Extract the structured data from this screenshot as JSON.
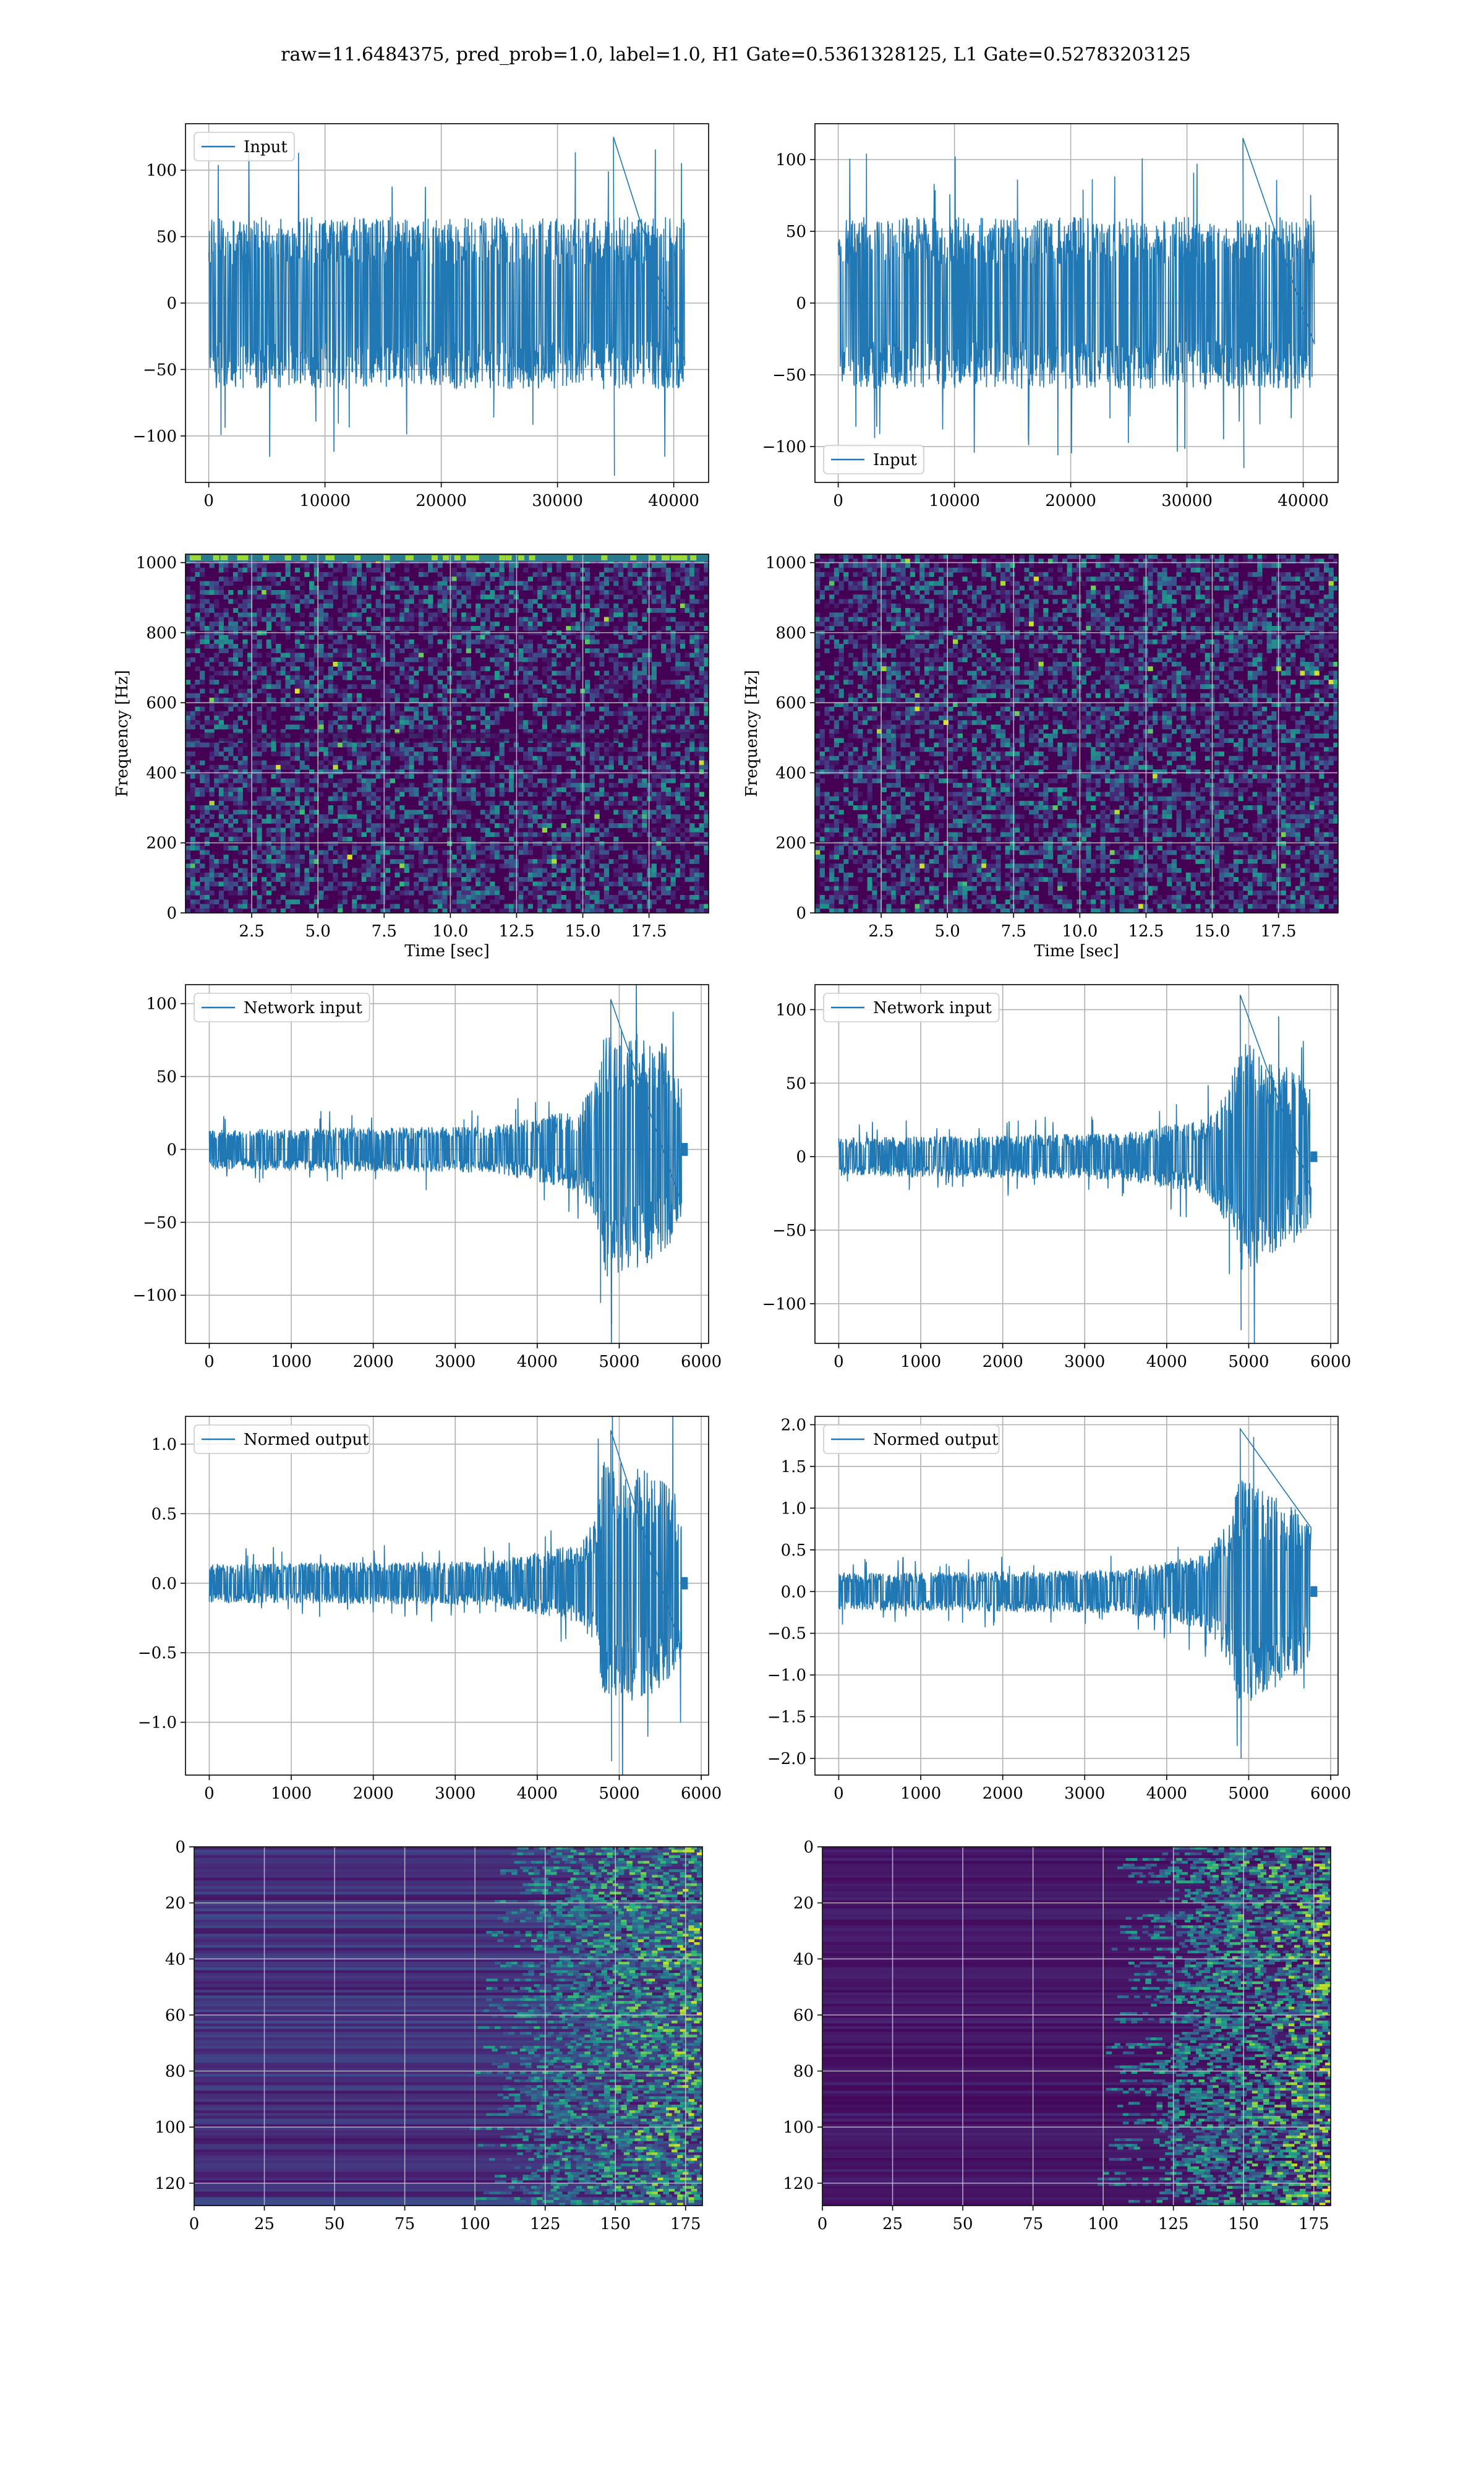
{
  "figure_title": "raw=11.6484375, pred_prob=1.0, label=1.0, H1 Gate=0.5361328125, L1 Gate=0.52783203125",
  "colors": {
    "line": "#1f77b4",
    "grid": "#b0b0b0",
    "viridis_low": "#440154",
    "viridis_high": "#fde725"
  },
  "chart_data": [
    {
      "id": "input-h1",
      "type": "line",
      "legend": "Input",
      "legend_loc": "upper left",
      "xlim": [
        -2000,
        43000
      ],
      "ylim": [
        -135,
        135
      ],
      "xticks": [
        0,
        10000,
        20000,
        30000,
        40000
      ],
      "xticklabels": [
        "0",
        "10000",
        "20000",
        "30000",
        "40000"
      ],
      "yticks": [
        -100,
        -50,
        0,
        50,
        100
      ],
      "yticklabels": [
        "−100",
        "−50",
        "0",
        "50",
        "100"
      ],
      "xlabel": "",
      "ylabel": "",
      "signal": {
        "x_start": 0,
        "x_end": 40960,
        "envelope": [
          [
            0,
            65
          ],
          [
            1,
            65
          ]
        ],
        "peaks": [
          125,
          -130
        ]
      }
    },
    {
      "id": "input-l1",
      "type": "line",
      "legend": "Input",
      "legend_loc": "lower left",
      "xlim": [
        -2000,
        43000
      ],
      "ylim": [
        -125,
        125
      ],
      "xticks": [
        0,
        10000,
        20000,
        30000,
        40000
      ],
      "xticklabels": [
        "0",
        "10000",
        "20000",
        "30000",
        "40000"
      ],
      "yticks": [
        -100,
        -50,
        0,
        50,
        100
      ],
      "yticklabels": [
        "−100",
        "−50",
        "0",
        "50",
        "100"
      ],
      "xlabel": "",
      "ylabel": "",
      "signal": {
        "x_start": 0,
        "x_end": 40960,
        "envelope": [
          [
            0,
            60
          ],
          [
            1,
            60
          ]
        ],
        "peaks": [
          115,
          -115
        ]
      }
    },
    {
      "id": "spectrogram-h1",
      "type": "heatmap",
      "cmap": "viridis",
      "xlim": [
        0,
        19.75
      ],
      "ylim": [
        0,
        1024
      ],
      "xticks": [
        2.5,
        5.0,
        7.5,
        10.0,
        12.5,
        15.0,
        17.5
      ],
      "xticklabels": [
        "2.5",
        "5.0",
        "7.5",
        "10.0",
        "12.5",
        "15.0",
        "17.5"
      ],
      "yticks": [
        0,
        200,
        400,
        600,
        800,
        1000
      ],
      "yticklabels": [
        "0",
        "200",
        "400",
        "600",
        "800",
        "1000"
      ],
      "xlabel": "Time [sec]",
      "ylabel": "Frequency [Hz]"
    },
    {
      "id": "spectrogram-l1",
      "type": "heatmap",
      "cmap": "viridis",
      "xlim": [
        0,
        19.75
      ],
      "ylim": [
        0,
        1024
      ],
      "xticks": [
        2.5,
        5.0,
        7.5,
        10.0,
        12.5,
        15.0,
        17.5
      ],
      "xticklabels": [
        "2.5",
        "5.0",
        "7.5",
        "10.0",
        "12.5",
        "15.0",
        "17.5"
      ],
      "yticks": [
        0,
        200,
        400,
        600,
        800,
        1000
      ],
      "yticklabels": [
        "0",
        "200",
        "400",
        "600",
        "800",
        "1000"
      ],
      "xlabel": "Time [sec]",
      "ylabel": "Frequency [Hz]"
    },
    {
      "id": "network-input-h1",
      "type": "line",
      "legend": "Network input",
      "legend_loc": "upper left",
      "xlim": [
        -290,
        6090
      ],
      "ylim": [
        -133,
        113
      ],
      "xticks": [
        0,
        1000,
        2000,
        3000,
        4000,
        5000,
        6000
      ],
      "xticklabels": [
        "0",
        "1000",
        "2000",
        "3000",
        "4000",
        "5000",
        "6000"
      ],
      "yticks": [
        -100,
        -50,
        0,
        50,
        100
      ],
      "yticklabels": [
        "−100",
        "−50",
        "0",
        "50",
        "100"
      ],
      "xlabel": "",
      "ylabel": "",
      "signal": {
        "x_start": 0,
        "x_end": 5760,
        "tail_end": 5830,
        "envelope": [
          [
            0,
            14
          ],
          [
            0.6,
            16
          ],
          [
            0.78,
            28
          ],
          [
            0.82,
            48
          ],
          [
            0.835,
            88
          ],
          [
            0.9,
            82
          ],
          [
            0.97,
            72
          ],
          [
            1.0,
            55
          ]
        ],
        "peaks": [
          103,
          -120
        ]
      }
    },
    {
      "id": "network-input-l1",
      "type": "line",
      "legend": "Network input",
      "legend_loc": "upper left",
      "xlim": [
        -290,
        6090
      ],
      "ylim": [
        -127,
        117
      ],
      "xticks": [
        0,
        1000,
        2000,
        3000,
        4000,
        5000,
        6000
      ],
      "xticklabels": [
        "0",
        "1000",
        "2000",
        "3000",
        "4000",
        "5000",
        "6000"
      ],
      "yticks": [
        -100,
        -50,
        0,
        50,
        100
      ],
      "yticklabels": [
        "−100",
        "−50",
        "0",
        "50",
        "100"
      ],
      "xlabel": "",
      "ylabel": "",
      "signal": {
        "x_start": 0,
        "x_end": 5760,
        "tail_end": 5830,
        "envelope": [
          [
            0,
            13
          ],
          [
            0.6,
            16
          ],
          [
            0.78,
            26
          ],
          [
            0.83,
            50
          ],
          [
            0.85,
            80
          ],
          [
            0.9,
            70
          ],
          [
            0.97,
            58
          ],
          [
            1.0,
            45
          ]
        ],
        "peaks": [
          110,
          -118
        ]
      }
    },
    {
      "id": "normed-output-h1",
      "type": "line",
      "legend": "Normed output",
      "legend_loc": "upper left",
      "xlim": [
        -290,
        6090
      ],
      "ylim": [
        -1.38,
        1.2
      ],
      "xticks": [
        0,
        1000,
        2000,
        3000,
        4000,
        5000,
        6000
      ],
      "xticklabels": [
        "0",
        "1000",
        "2000",
        "3000",
        "4000",
        "5000",
        "6000"
      ],
      "yticks": [
        -1.0,
        -0.5,
        0.0,
        0.5,
        1.0
      ],
      "yticklabels": [
        "−1.0",
        "−0.5",
        "0.0",
        "0.5",
        "1.0"
      ],
      "xlabel": "",
      "ylabel": "",
      "signal": {
        "x_start": 0,
        "x_end": 5760,
        "tail_end": 5830,
        "envelope": [
          [
            0,
            0.14
          ],
          [
            0.6,
            0.16
          ],
          [
            0.78,
            0.28
          ],
          [
            0.82,
            0.48
          ],
          [
            0.835,
            0.9
          ],
          [
            0.9,
            0.85
          ],
          [
            0.97,
            0.75
          ],
          [
            1.0,
            0.55
          ]
        ],
        "peaks": [
          1.1,
          -1.28
        ]
      }
    },
    {
      "id": "normed-output-l1",
      "type": "line",
      "legend": "Normed output",
      "legend_loc": "upper left",
      "xlim": [
        -290,
        6090
      ],
      "ylim": [
        -2.2,
        2.1
      ],
      "xticks": [
        0,
        1000,
        2000,
        3000,
        4000,
        5000,
        6000
      ],
      "xticklabels": [
        "0",
        "1000",
        "2000",
        "3000",
        "4000",
        "5000",
        "6000"
      ],
      "yticks": [
        -2.0,
        -1.5,
        -1.0,
        -0.5,
        0.0,
        0.5,
        1.0,
        1.5,
        2.0
      ],
      "yticklabels": [
        "−2.0",
        "−1.5",
        "−1.0",
        "−0.5",
        "0.0",
        "0.5",
        "1.0",
        "1.5",
        "2.0"
      ],
      "xlabel": "",
      "ylabel": "",
      "signal": {
        "x_start": 0,
        "x_end": 5760,
        "tail_end": 5830,
        "envelope": [
          [
            0,
            0.22
          ],
          [
            0.6,
            0.26
          ],
          [
            0.78,
            0.45
          ],
          [
            0.83,
            0.9
          ],
          [
            0.85,
            1.45
          ],
          [
            0.9,
            1.25
          ],
          [
            0.97,
            1.0
          ],
          [
            1.0,
            0.8
          ]
        ],
        "peaks": [
          1.95,
          -2.0
        ]
      }
    },
    {
      "id": "feature-map-h1",
      "type": "heatmap",
      "cmap": "viridis",
      "xlim": [
        0,
        181
      ],
      "ylim": [
        128,
        0
      ],
      "xticks": [
        0,
        25,
        50,
        75,
        100,
        125,
        150,
        175
      ],
      "xticklabels": [
        "0",
        "25",
        "50",
        "75",
        "100",
        "125",
        "150",
        "175"
      ],
      "yticks": [
        0,
        20,
        40,
        60,
        80,
        100,
        120
      ],
      "yticklabels": [
        "0",
        "20",
        "40",
        "60",
        "80",
        "100",
        "120"
      ],
      "xlabel": "",
      "ylabel": ""
    },
    {
      "id": "feature-map-l1",
      "type": "heatmap",
      "cmap": "viridis",
      "xlim": [
        0,
        181
      ],
      "ylim": [
        128,
        0
      ],
      "xticks": [
        0,
        25,
        50,
        75,
        100,
        125,
        150,
        175
      ],
      "xticklabels": [
        "0",
        "25",
        "50",
        "75",
        "100",
        "125",
        "150",
        "175"
      ],
      "yticks": [
        0,
        20,
        40,
        60,
        80,
        100,
        120
      ],
      "yticklabels": [
        "0",
        "20",
        "40",
        "60",
        "80",
        "100",
        "120"
      ],
      "xlabel": "",
      "ylabel": ""
    }
  ]
}
